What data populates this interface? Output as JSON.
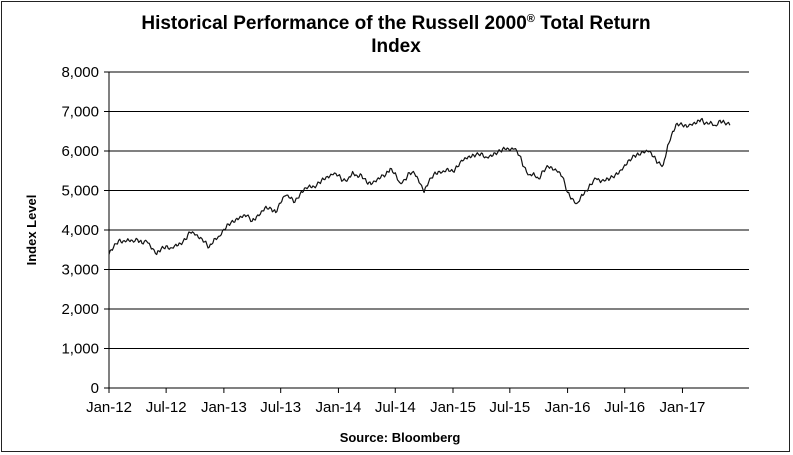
{
  "chart_data": {
    "type": "line",
    "title_line1": "Historical Performance of the Russell 2000",
    "title_reg": "®",
    "title_line1_end": " Total Return",
    "title_line2": "Index",
    "ylabel": "Index Level",
    "xlabel": "Source:  Bloomberg",
    "ylim": [
      0,
      8000
    ],
    "yticks": [
      "0",
      "1,000",
      "2,000",
      "3,000",
      "4,000",
      "5,000",
      "6,000",
      "7,000",
      "8,000"
    ],
    "xticks": [
      "Jan-12",
      "Jul-12",
      "Jan-13",
      "Jul-13",
      "Jan-14",
      "Jul-14",
      "Jan-15",
      "Jul-15",
      "Jan-16",
      "Jul-16",
      "Jan-17"
    ],
    "grid": true,
    "x": [
      "2012-01-01",
      "2012-01-15",
      "2012-02-01",
      "2012-02-15",
      "2012-03-01",
      "2012-03-15",
      "2012-04-01",
      "2012-04-15",
      "2012-05-01",
      "2012-05-15",
      "2012-06-01",
      "2012-06-15",
      "2012-07-01",
      "2012-07-15",
      "2012-08-01",
      "2012-08-15",
      "2012-09-01",
      "2012-09-15",
      "2012-10-01",
      "2012-10-15",
      "2012-11-01",
      "2012-11-15",
      "2012-12-01",
      "2012-12-15",
      "2013-01-01",
      "2013-01-15",
      "2013-02-01",
      "2013-02-15",
      "2013-03-01",
      "2013-03-15",
      "2013-04-01",
      "2013-04-15",
      "2013-05-01",
      "2013-05-15",
      "2013-06-01",
      "2013-06-15",
      "2013-07-01",
      "2013-07-15",
      "2013-08-01",
      "2013-08-15",
      "2013-09-01",
      "2013-09-15",
      "2013-10-01",
      "2013-10-15",
      "2013-11-01",
      "2013-11-15",
      "2013-12-01",
      "2013-12-15",
      "2014-01-01",
      "2014-01-15",
      "2014-02-01",
      "2014-02-15",
      "2014-03-01",
      "2014-03-15",
      "2014-04-01",
      "2014-04-15",
      "2014-05-01",
      "2014-05-15",
      "2014-06-01",
      "2014-06-15",
      "2014-07-01",
      "2014-07-15",
      "2014-08-01",
      "2014-08-15",
      "2014-09-01",
      "2014-09-15",
      "2014-10-01",
      "2014-10-15",
      "2014-11-01",
      "2014-11-15",
      "2014-12-01",
      "2014-12-15",
      "2015-01-01",
      "2015-01-15",
      "2015-02-01",
      "2015-02-15",
      "2015-03-01",
      "2015-03-15",
      "2015-04-01",
      "2015-04-15",
      "2015-05-01",
      "2015-05-15",
      "2015-06-01",
      "2015-06-15",
      "2015-07-01",
      "2015-07-15",
      "2015-08-01",
      "2015-08-15",
      "2015-09-01",
      "2015-09-15",
      "2015-10-01",
      "2015-10-15",
      "2015-11-01",
      "2015-11-15",
      "2015-12-01",
      "2015-12-15",
      "2016-01-01",
      "2016-01-15",
      "2016-02-01",
      "2016-02-15",
      "2016-03-01",
      "2016-03-15",
      "2016-04-01",
      "2016-04-15",
      "2016-05-01",
      "2016-05-15",
      "2016-06-01",
      "2016-06-15",
      "2016-07-01",
      "2016-07-15",
      "2016-08-01",
      "2016-08-15",
      "2016-09-01",
      "2016-09-15",
      "2016-10-01",
      "2016-10-15",
      "2016-11-01",
      "2016-11-15",
      "2016-12-01",
      "2016-12-15",
      "2017-01-01",
      "2017-01-15",
      "2017-02-01",
      "2017-02-15",
      "2017-03-01",
      "2017-03-15",
      "2017-04-01",
      "2017-04-15",
      "2017-05-01",
      "2017-05-15",
      "2017-06-01"
    ],
    "series": [
      {
        "values": [
          3380,
          3550,
          3740,
          3720,
          3780,
          3740,
          3760,
          3660,
          3700,
          3520,
          3380,
          3520,
          3600,
          3550,
          3640,
          3660,
          3760,
          3940,
          3870,
          3780,
          3700,
          3560,
          3780,
          3840,
          4020,
          4150,
          4200,
          4260,
          4320,
          4360,
          4220,
          4340,
          4480,
          4600,
          4540,
          4440,
          4680,
          4860,
          4800,
          4700,
          4920,
          5060,
          5140,
          5100,
          5200,
          5280,
          5320,
          5400,
          5380,
          5250,
          5300,
          5480,
          5380,
          5400,
          5200,
          5150,
          5220,
          5320,
          5400,
          5560,
          5450,
          5200,
          5280,
          5450,
          5420,
          5200,
          4950,
          5200,
          5420,
          5480,
          5500,
          5560,
          5480,
          5600,
          5750,
          5800,
          5850,
          5900,
          5950,
          5850,
          5900,
          5950,
          6000,
          6050,
          6000,
          6050,
          5880,
          5600,
          5400,
          5450,
          5300,
          5500,
          5600,
          5520,
          5460,
          5350,
          4950,
          4800,
          4680,
          4900,
          5000,
          5150,
          5300,
          5200,
          5250,
          5300,
          5400,
          5500,
          5650,
          5780,
          5880,
          5900,
          5950,
          5980,
          5850,
          5700,
          5650,
          6150,
          6500,
          6700,
          6650,
          6600,
          6650,
          6700,
          6800,
          6700,
          6750,
          6650,
          6780,
          6720,
          6650
        ]
      }
    ]
  }
}
